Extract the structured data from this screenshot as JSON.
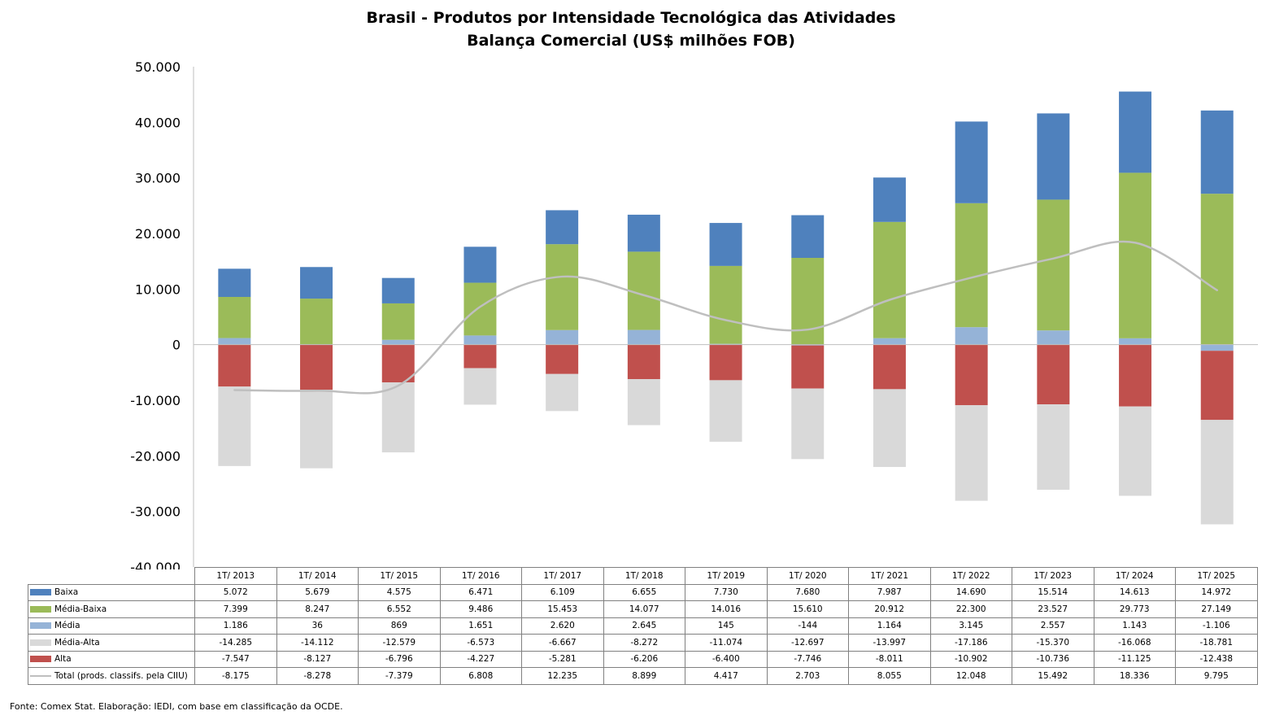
{
  "chart_data": {
    "type": "bar",
    "stacked": true,
    "title": [
      "Brasil - Produtos por Intensidade Tecnológica das Atividades",
      "Balança Comercial (US$ milhões FOB)"
    ],
    "xlabel": "",
    "ylabel": "",
    "ylim": [
      -40000,
      50000
    ],
    "yticks": [
      "50.000",
      "40.000",
      "30.000",
      "20.000",
      "10.000",
      "0",
      "-10.000",
      "-20.000",
      "-30.000",
      "-40.000"
    ],
    "ytick_values": [
      50000,
      40000,
      30000,
      20000,
      10000,
      0,
      -10000,
      -20000,
      -30000,
      -40000
    ],
    "categories": [
      "1T/ 2013",
      "1T/ 2014",
      "1T/ 2015",
      "1T/ 2016",
      "1T/ 2017",
      "1T/ 2018",
      "1T/ 2019",
      "1T/ 2020",
      "1T/ 2021",
      "1T/ 2022",
      "1T/ 2023",
      "1T/ 2024",
      "1T/ 2025"
    ],
    "series": [
      {
        "name": "Baixa",
        "type": "bar",
        "color": "#4f81bd",
        "values": [
          5072,
          5679,
          4575,
          6471,
          6109,
          6655,
          7730,
          7680,
          7987,
          14690,
          15514,
          14613,
          14972
        ],
        "labels": [
          "5.072",
          "5.679",
          "4.575",
          "6.471",
          "6.109",
          "6.655",
          "7.730",
          "7.680",
          "7.987",
          "14.690",
          "15.514",
          "14.613",
          "14.972"
        ]
      },
      {
        "name": "Média-Baixa",
        "type": "bar",
        "color": "#9bbb59",
        "values": [
          7399,
          8247,
          6552,
          9486,
          15453,
          14077,
          14016,
          15610,
          20912,
          22300,
          23527,
          29773,
          27149
        ],
        "labels": [
          "7.399",
          "8.247",
          "6.552",
          "9.486",
          "15.453",
          "14.077",
          "14.016",
          "15.610",
          "20.912",
          "22.300",
          "23.527",
          "29.773",
          "27.149"
        ]
      },
      {
        "name": "Média",
        "type": "bar",
        "color": "#95b3d7",
        "values": [
          1186,
          36,
          869,
          1651,
          2620,
          2645,
          145,
          -144,
          1164,
          3145,
          2557,
          1143,
          -1106
        ],
        "labels": [
          "1.186",
          "36",
          "869",
          "1.651",
          "2.620",
          "2.645",
          "145",
          "-144",
          "1.164",
          "3.145",
          "2.557",
          "1.143",
          "-1.106"
        ]
      },
      {
        "name": "Média-Alta",
        "type": "bar",
        "color": "#d9d9d9",
        "values": [
          -14285,
          -14112,
          -12579,
          -6573,
          -6667,
          -8272,
          -11074,
          -12697,
          -13997,
          -17186,
          -15370,
          -16068,
          -18781
        ],
        "labels": [
          "-14.285",
          "-14.112",
          "-12.579",
          "-6.573",
          "-6.667",
          "-8.272",
          "-11.074",
          "-12.697",
          "-13.997",
          "-17.186",
          "-15.370",
          "-16.068",
          "-18.781"
        ]
      },
      {
        "name": "Alta",
        "type": "bar",
        "color": "#c0504d",
        "values": [
          -7547,
          -8127,
          -6796,
          -4227,
          -5281,
          -6206,
          -6400,
          -7746,
          -8011,
          -10902,
          -10736,
          -11125,
          -12438
        ],
        "labels": [
          "-7.547",
          "-8.127",
          "-6.796",
          "-4.227",
          "-5.281",
          "-6.206",
          "-6.400",
          "-7.746",
          "-8.011",
          "-10.902",
          "-10.736",
          "-11.125",
          "-12.438"
        ]
      },
      {
        "name": "Total (prods. classifs. pela CIIU)",
        "type": "line",
        "color": "#bfbfbf",
        "values": [
          -8175,
          -8278,
          -7379,
          6808,
          12235,
          8899,
          4417,
          2703,
          8055,
          12048,
          15492,
          18336,
          9795
        ],
        "labels": [
          "-8.175",
          "-8.278",
          "-7.379",
          "6.808",
          "12.235",
          "8.899",
          "4.417",
          "2.703",
          "8.055",
          "12.048",
          "15.492",
          "18.336",
          "9.795"
        ]
      }
    ],
    "legend": "data-table",
    "grid": false
  },
  "source_note": "Fonte:  Comex Stat. Elaboração: IEDI, com base em classificação da OCDE."
}
